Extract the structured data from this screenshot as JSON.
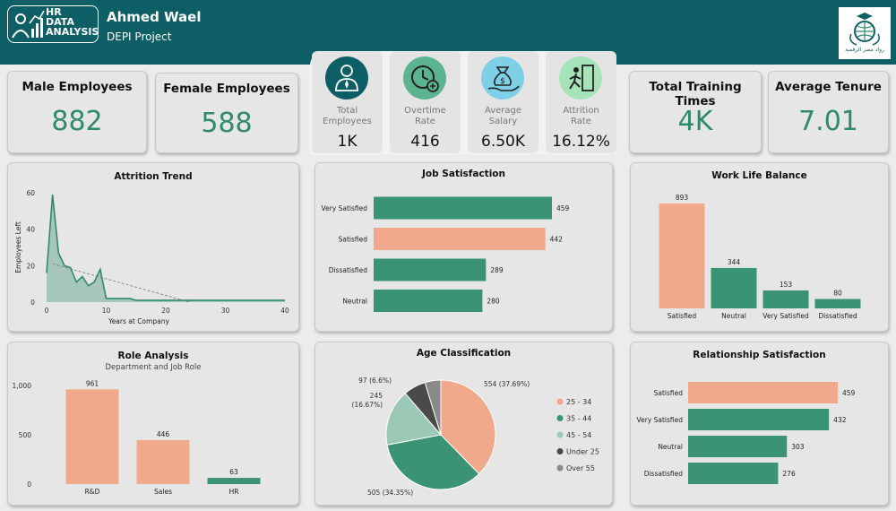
{
  "header": {
    "logo_lines": [
      "HR",
      "DATA",
      "ANALYSIS"
    ],
    "name": "Ahmed Wael",
    "project": "DEPI Project",
    "brand_text": "رواد مصر الرقمية"
  },
  "kpis": {
    "male": {
      "label": "Male Employees",
      "value": "882"
    },
    "female": {
      "label": "Female Employees",
      "value": "588"
    },
    "training": {
      "label": "Total Training Times",
      "value": "4K"
    },
    "tenure": {
      "label": "Average Tenure",
      "value": "7.01"
    }
  },
  "icon_kpis": [
    {
      "label1": "Total",
      "label2": "Employees",
      "value": "1K",
      "icon": "employee-icon",
      "color": "#0e5e66"
    },
    {
      "label1": "Overtime",
      "label2": "Rate",
      "value": "416",
      "icon": "clock-plus-icon",
      "color": "#5cb38f"
    },
    {
      "label1": "Average",
      "label2": "Salary",
      "value": "6.50K",
      "icon": "money-bag-icon",
      "color": "#7fd0e6"
    },
    {
      "label1": "Attrition",
      "label2": "Rate",
      "value": "16.12%",
      "icon": "exit-door-icon",
      "color": "#a6e3b8"
    }
  ],
  "chart_data": [
    {
      "type": "area",
      "title": "Attrition Trend",
      "xlabel": "Years at Company",
      "ylabel": "Employees Left",
      "xlim": [
        0,
        40
      ],
      "ylim": [
        0,
        60
      ],
      "xticks": [
        0,
        10,
        20,
        30,
        40
      ],
      "yticks": [
        0,
        20,
        40,
        60
      ],
      "x": [
        0,
        1,
        2,
        3,
        4,
        5,
        6,
        7,
        8,
        9,
        10,
        11,
        12,
        13,
        14,
        15,
        16,
        17,
        18,
        19,
        20,
        21,
        22,
        23,
        24,
        25,
        40
      ],
      "values": [
        16,
        59,
        27,
        20,
        19,
        11,
        14,
        9,
        11,
        18,
        2,
        2,
        2,
        2,
        2,
        1,
        1,
        1,
        1,
        1,
        1,
        1,
        1,
        1,
        1,
        1,
        1
      ],
      "trendline": {
        "start": [
          1,
          21
        ],
        "end": [
          24,
          0
        ]
      },
      "color": "#2f8a6a"
    },
    {
      "type": "bar",
      "orientation": "horizontal",
      "title": "Job Satisfaction",
      "categories": [
        "Very Satisfied",
        "Satisfied",
        "Dissatisfied",
        "Neutral"
      ],
      "values": [
        459,
        442,
        289,
        280
      ],
      "colors": [
        "#3a9473",
        "#f0a98a",
        "#3a9473",
        "#3a9473"
      ]
    },
    {
      "type": "bar",
      "title": "Work Life Balance",
      "categories": [
        "Satisfied",
        "Neutral",
        "Very Satisfied",
        "Dissatisfied"
      ],
      "values": [
        893,
        344,
        153,
        80
      ],
      "colors": [
        "#f0a98a",
        "#3a9473",
        "#3a9473",
        "#3a9473"
      ]
    },
    {
      "type": "bar",
      "title": "Role Analysis",
      "subtitle": "Department and Job Role",
      "categories": [
        "R&D",
        "Sales",
        "HR"
      ],
      "values": [
        961,
        446,
        63
      ],
      "yticks": [
        "1,000",
        "500",
        "0"
      ],
      "ylim": [
        0,
        1000
      ],
      "colors": [
        "#f0a98a",
        "#f0a98a",
        "#3a9473"
      ]
    },
    {
      "type": "pie",
      "title": "Age Classification",
      "slices": [
        {
          "name": "25 - 34",
          "value": 554,
          "label": "554 (37.69%)",
          "color": "#f0a98a"
        },
        {
          "name": "35 - 44",
          "value": 505,
          "label": "505 (34.35%)",
          "color": "#3a9473"
        },
        {
          "name": "45 - 54",
          "value": 245,
          "label": "245 (16.67%)",
          "color": "#9cc9b6"
        },
        {
          "name": "Under 25",
          "value": 97,
          "label": "97 (6.6%)",
          "color": "#4a4a4a"
        },
        {
          "name": "Over 55",
          "value": 69,
          "label": "",
          "color": "#8a8a8a"
        }
      ],
      "legend_position": "right"
    },
    {
      "type": "bar",
      "orientation": "horizontal",
      "title": "Relationship Satisfaction",
      "categories": [
        "Satisfied",
        "Very Satisfied",
        "Neutral",
        "Dissatisfied"
      ],
      "values": [
        459,
        432,
        303,
        276
      ],
      "colors": [
        "#f0a98a",
        "#3a9473",
        "#3a9473",
        "#3a9473"
      ]
    }
  ]
}
